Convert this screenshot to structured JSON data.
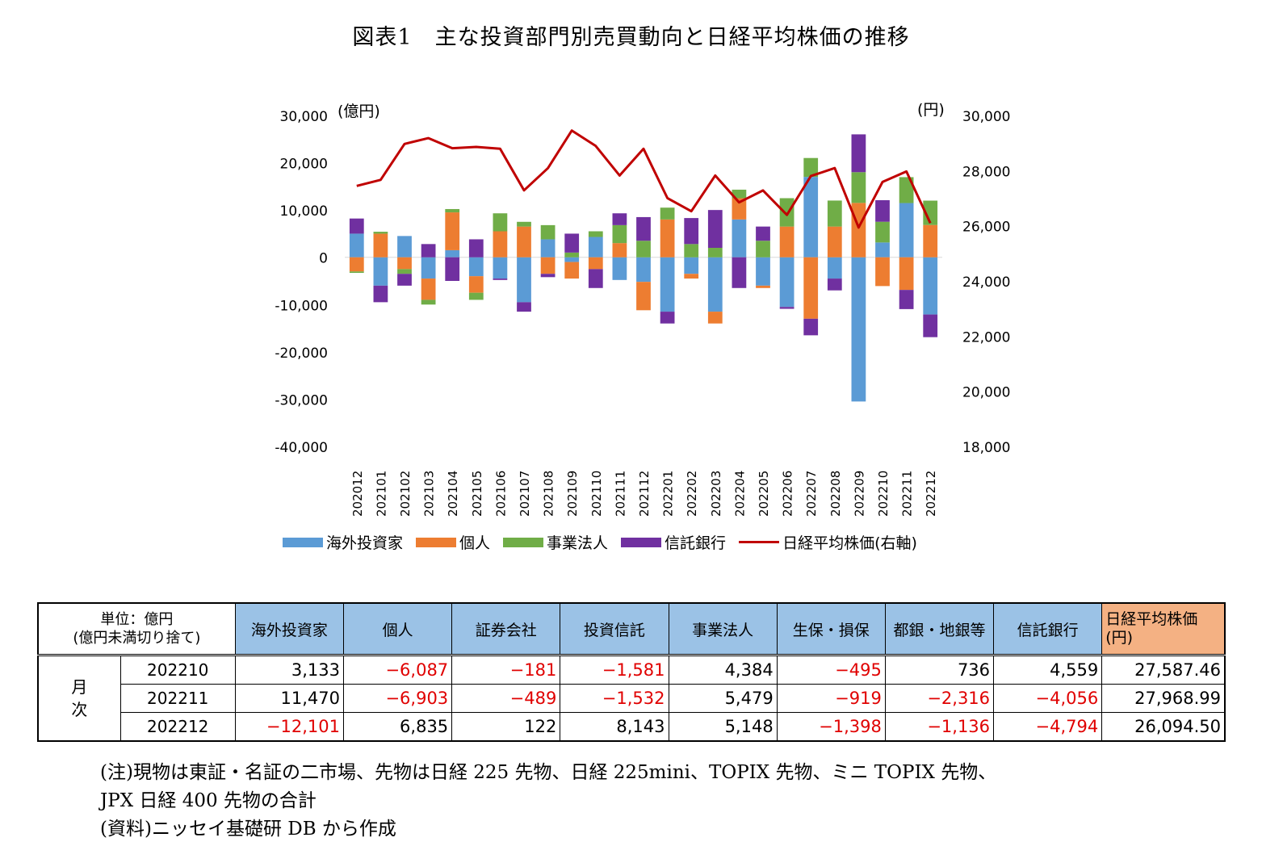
{
  "title": "図表1　主な投資部門別売買動向と日経平均株価の推移",
  "chart_data": {
    "type": "bar",
    "stacked": true,
    "left_axis_unit": "(億円)",
    "right_axis_unit": "(円)",
    "left_ylim": [
      -40000,
      30000
    ],
    "left_ticks": [
      30000,
      20000,
      10000,
      0,
      -10000,
      -20000,
      -30000,
      -40000
    ],
    "left_tick_labels": [
      "30,000",
      "20,000",
      "10,000",
      "0",
      "-10,000",
      "-20,000",
      "-30,000",
      "-40,000"
    ],
    "right_ylim": [
      18000,
      30000
    ],
    "right_ticks": [
      30000,
      28000,
      26000,
      24000,
      22000,
      20000,
      18000
    ],
    "right_tick_labels": [
      "30,000",
      "28,000",
      "26,000",
      "24,000",
      "22,000",
      "20,000",
      "18,000"
    ],
    "categories": [
      "202012",
      "202101",
      "202102",
      "202103",
      "202104",
      "202105",
      "202106",
      "202107",
      "202108",
      "202109",
      "202110",
      "202111",
      "202112",
      "202201",
      "202202",
      "202203",
      "202204",
      "202205",
      "202206",
      "202207",
      "202208",
      "202209",
      "202210",
      "202211",
      "202212"
    ],
    "series": [
      {
        "name": "海外投資家",
        "color": "#5b9bd5",
        "values": [
          5000,
          -6000,
          4500,
          -4500,
          1500,
          -4000,
          -4500,
          -9500,
          3800,
          -1000,
          4300,
          -4800,
          -5200,
          -11500,
          -3500,
          -11500,
          8000,
          -6000,
          -10500,
          17000,
          -4500,
          -30500,
          3133,
          11470,
          -12101
        ]
      },
      {
        "name": "個人",
        "color": "#ed7d31",
        "values": [
          -3000,
          5000,
          -2500,
          -4500,
          8000,
          -3500,
          5500,
          6500,
          -3500,
          -3500,
          -2500,
          3000,
          -6000,
          8000,
          -1000,
          -2500,
          4500,
          -500,
          6500,
          -13000,
          6500,
          11500,
          -6087,
          -6903,
          6835
        ]
      },
      {
        "name": "事業法人",
        "color": "#70ad47",
        "values": [
          -300,
          400,
          -1000,
          -1000,
          700,
          -1500,
          3800,
          1000,
          3000,
          1000,
          1200,
          3800,
          3500,
          2500,
          2800,
          2000,
          1800,
          3500,
          6000,
          4000,
          5500,
          6500,
          4384,
          5479,
          5148
        ]
      },
      {
        "name": "信託銀行",
        "color": "#7030a0",
        "values": [
          3200,
          -3500,
          -2500,
          2800,
          -5000,
          3800,
          -300,
          -2000,
          -700,
          4000,
          -4000,
          2500,
          5000,
          -2500,
          5500,
          8000,
          -6500,
          3000,
          -400,
          -3500,
          -2500,
          8000,
          4559,
          -4056,
          -4794
        ]
      }
    ],
    "line": {
      "name": "日経平均株価(右軸)",
      "color": "#c00000",
      "values": [
        27444,
        27663,
        28966,
        29179,
        28813,
        28860,
        28792,
        27284,
        28090,
        29453,
        28893,
        27822,
        28792,
        27002,
        26527,
        27821,
        26848,
        27280,
        26393,
        27802,
        28092,
        25937,
        27587.46,
        27968.99,
        26094.5
      ]
    }
  },
  "legend": [
    "海外投資家",
    "個人",
    "事業法人",
    "信託銀行",
    "日経平均株価(右軸)"
  ],
  "table": {
    "unit_label_1": "単位：億円",
    "unit_label_2": "(億円未満切り捨て)",
    "headers": [
      "海外投資家",
      "個人",
      "証券会社",
      "投資信託",
      "事業法人",
      "生保・損保",
      "都銀・地銀等",
      "信託銀行"
    ],
    "nikkei_header": "日経平均株価(円)",
    "period_label": "月次",
    "rows": [
      {
        "month": "202210",
        "cells": [
          "3,133",
          "−6,087",
          "−181",
          "−1,581",
          "4,384",
          "−495",
          "736",
          "4,559"
        ],
        "nikkei": "27,587.46"
      },
      {
        "month": "202211",
        "cells": [
          "11,470",
          "−6,903",
          "−489",
          "−1,532",
          "5,479",
          "−919",
          "−2,316",
          "−4,056"
        ],
        "nikkei": "27,968.99"
      },
      {
        "month": "202212",
        "cells": [
          "−12,101",
          "6,835",
          "122",
          "8,143",
          "5,148",
          "−1,398",
          "−1,136",
          "−4,794"
        ],
        "nikkei": "26,094.50"
      }
    ]
  },
  "notes": [
    "(注)現物は東証・名証の二市場、先物は日経 225 先物、日経 225mini、TOPIX 先物、ミニ TOPIX 先物、",
    "JPX 日経 400 先物の合計",
    "(資料)ニッセイ基礎研 DB から作成"
  ]
}
